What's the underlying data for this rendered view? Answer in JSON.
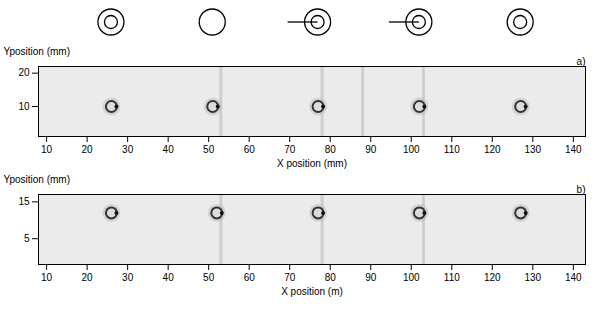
{
  "chart_data": [
    {
      "type": "scatter",
      "panel": "a)",
      "marker": "spot",
      "x": [
        26,
        51,
        77,
        102,
        127
      ],
      "y": [
        10,
        10,
        10,
        10,
        10
      ],
      "bands_x": [
        53,
        78,
        88,
        103
      ],
      "xlabel": "X position (mm)",
      "ylabel": "Yposition (mm)",
      "xlim": [
        8,
        143
      ],
      "ylim": [
        1,
        22
      ],
      "xticks": [
        10,
        20,
        30,
        40,
        50,
        60,
        70,
        80,
        90,
        100,
        110,
        120,
        130,
        140
      ],
      "yticks": [
        10,
        20
      ]
    },
    {
      "type": "scatter",
      "panel": "b)",
      "marker": "spot",
      "x": [
        26,
        52,
        77,
        102,
        127
      ],
      "y": [
        12,
        12,
        12,
        12,
        12
      ],
      "bands_x": [
        53,
        78,
        103
      ],
      "xlabel": "X position (m)",
      "ylabel": "Yposition (mm)",
      "xlim": [
        8,
        143
      ],
      "ylim": [
        -2,
        17
      ],
      "xticks": [
        10,
        20,
        30,
        40,
        50,
        60,
        70,
        80,
        90,
        100,
        110,
        120,
        130,
        140
      ],
      "yticks": [
        5,
        15
      ]
    }
  ]
}
